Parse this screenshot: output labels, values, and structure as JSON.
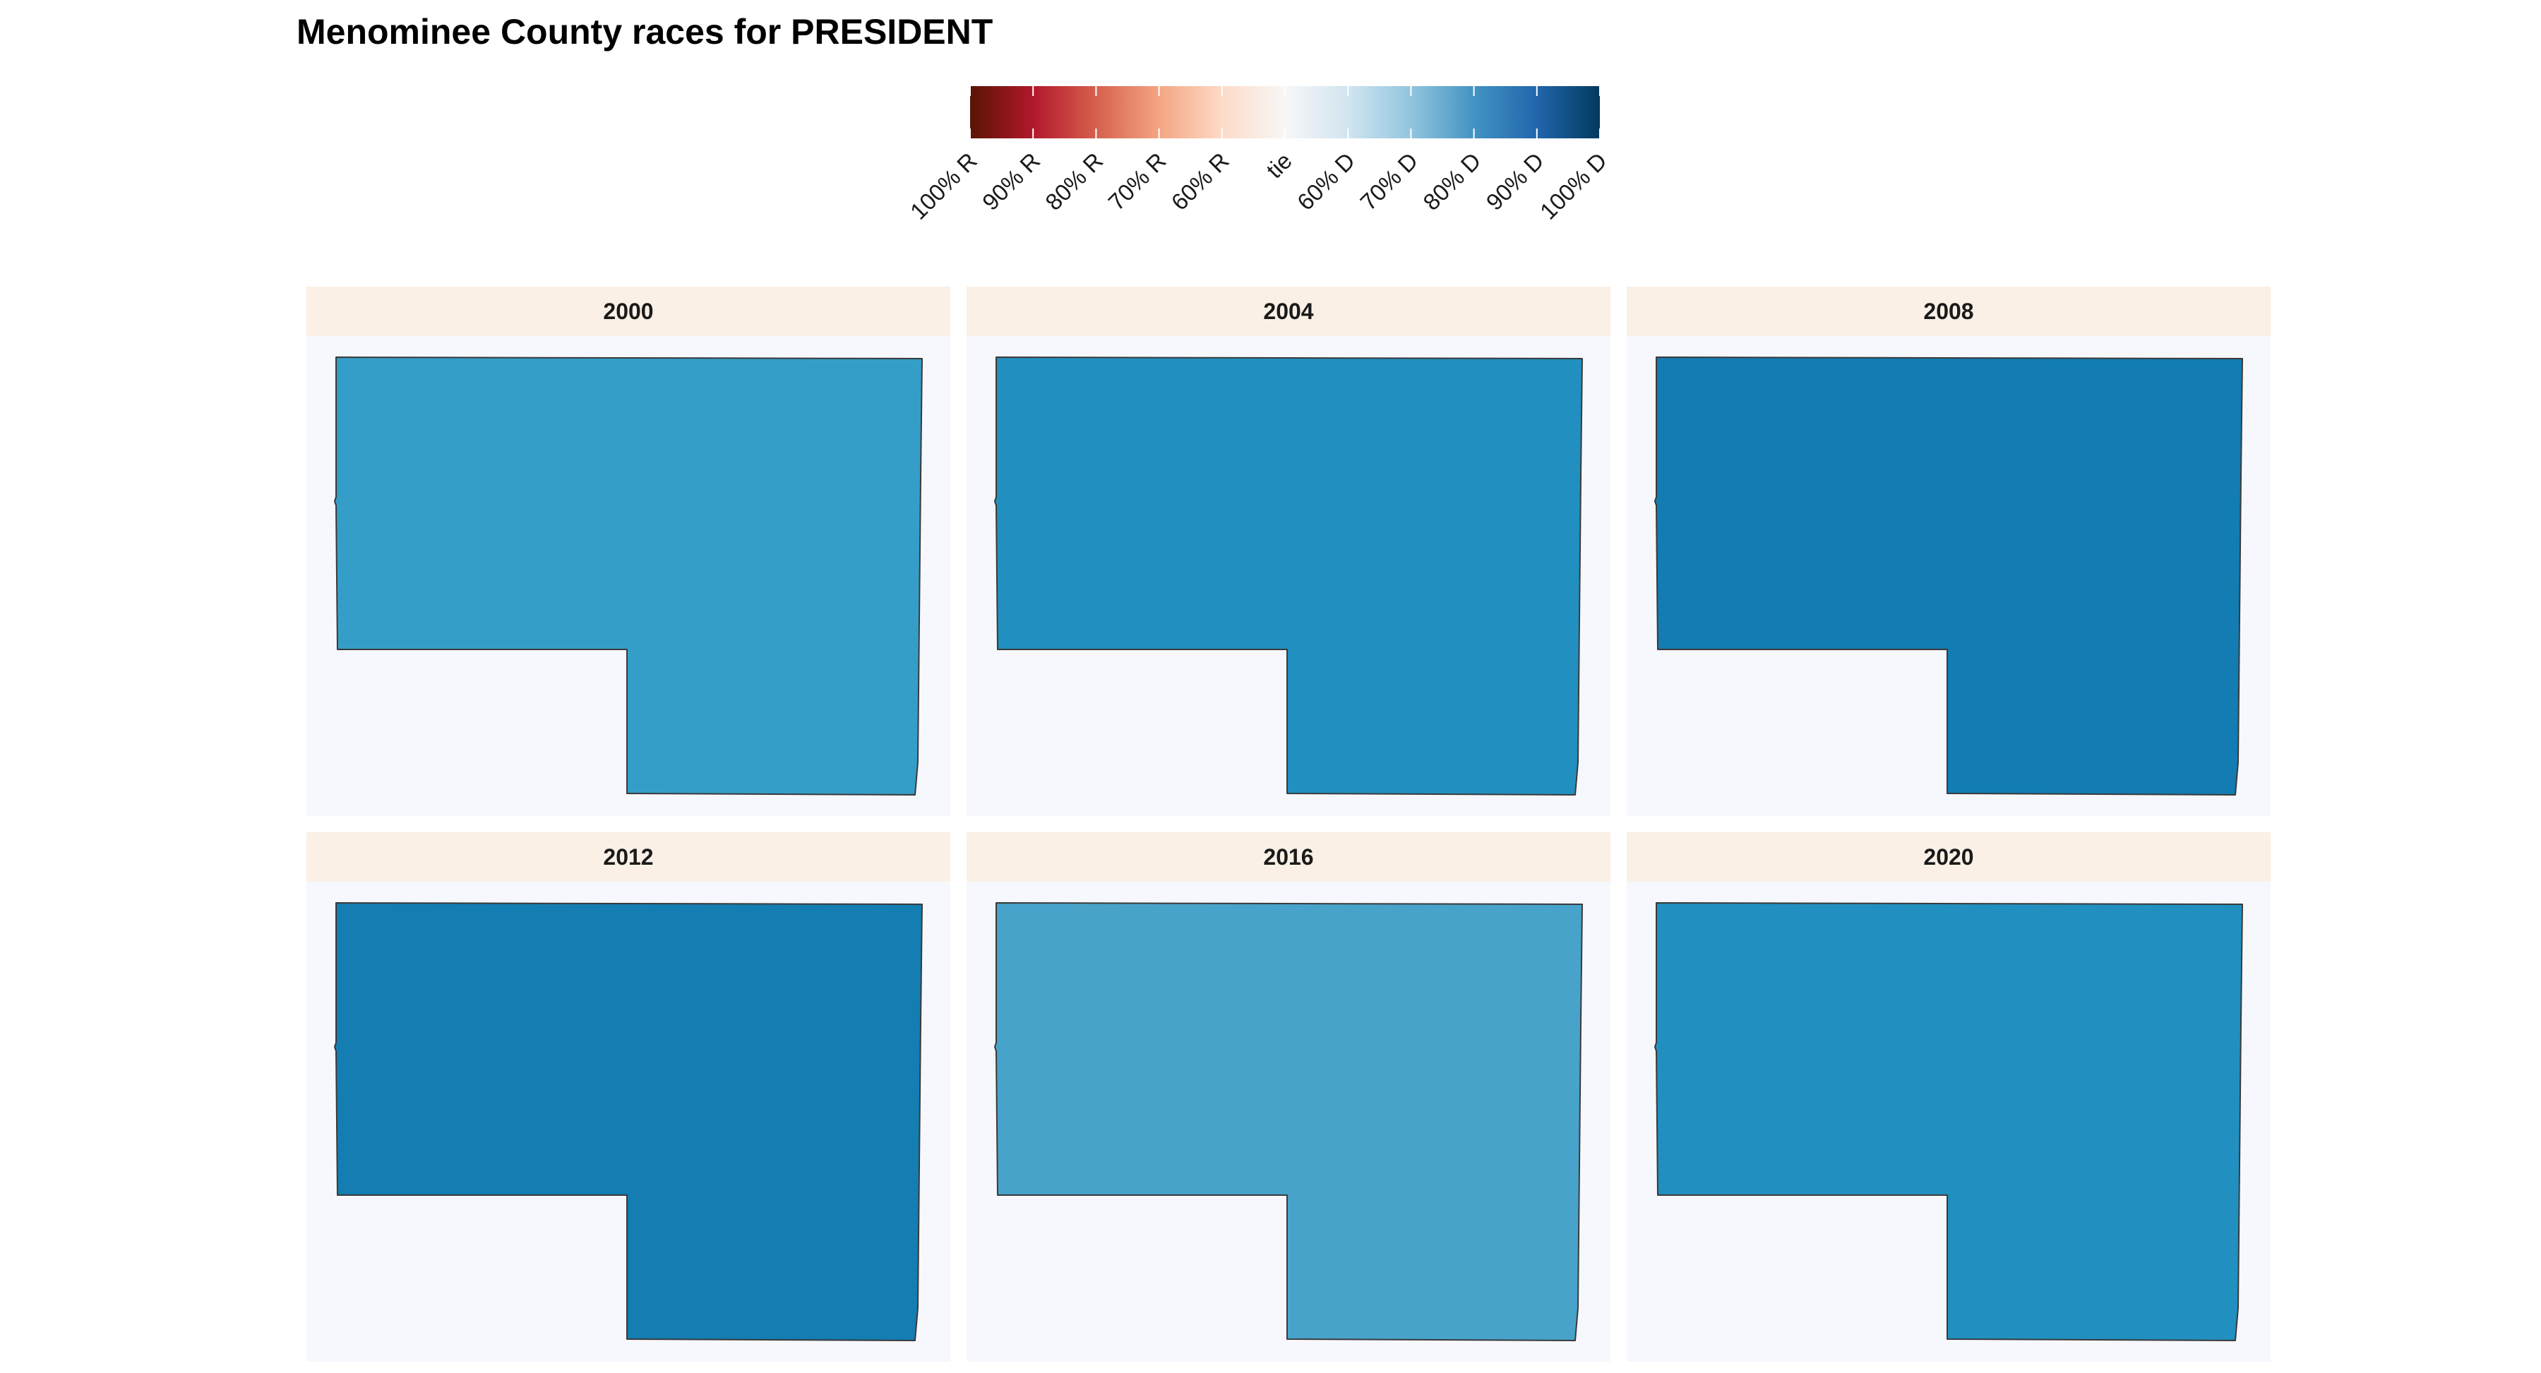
{
  "title": "Menominee County races for PRESIDENT",
  "legend": {
    "ticks": [
      "100% R",
      "90% R",
      "80% R",
      "70% R",
      "60% R",
      "tie",
      "60% D",
      "70% D",
      "80% D",
      "90% D",
      "100% D"
    ],
    "scale_colors": [
      "#67001f",
      "#b2182b",
      "#d6604d",
      "#f4a582",
      "#fddbc7",
      "#f7f7f7",
      "#d1e5f0",
      "#92c5de",
      "#4393c3",
      "#2166ac",
      "#053061"
    ],
    "low_color": "#5a1404",
    "high_color": "#02395e"
  },
  "colors": {
    "strip_background": "#faf0e6",
    "panel_background": "#f7f8fd",
    "county_border": "#3a3a3a"
  },
  "panels": [
    {
      "year": "2000",
      "fill": "#359ec8"
    },
    {
      "year": "2004",
      "fill": "#2190c0"
    },
    {
      "year": "2008",
      "fill": "#137cb2"
    },
    {
      "year": "2012",
      "fill": "#147db2"
    },
    {
      "year": "2016",
      "fill": "#48a3cb"
    },
    {
      "year": "2020",
      "fill": "#2190c0"
    }
  ]
}
